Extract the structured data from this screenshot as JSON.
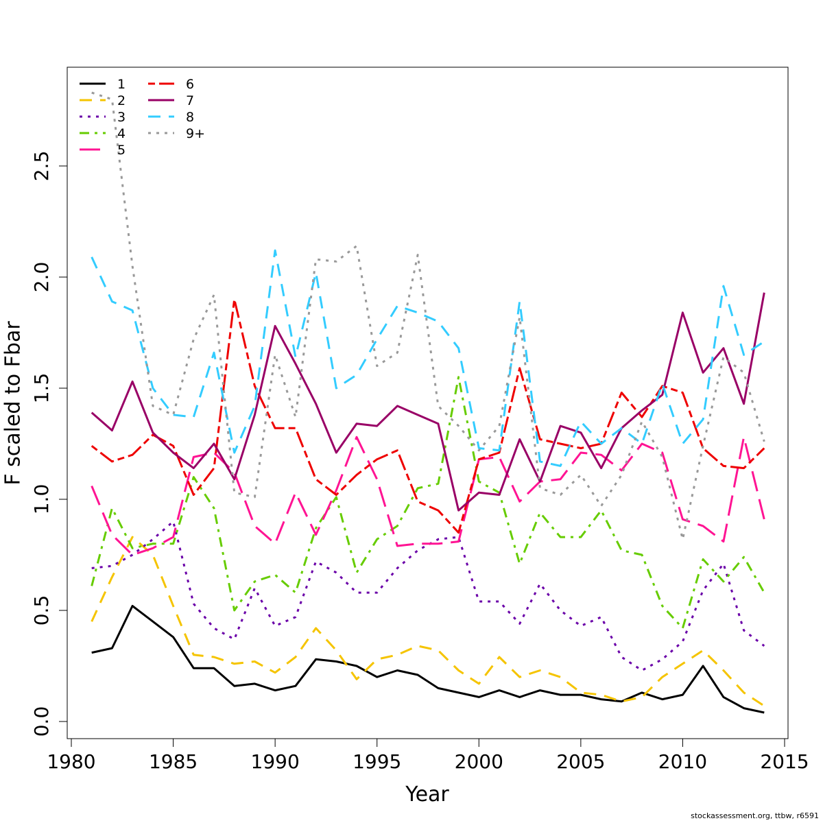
{
  "chart_data": {
    "type": "line",
    "title": "",
    "xlabel": "Year",
    "ylabel": "F scaled to Fbar",
    "xlim": [
      1980,
      2015
    ],
    "ylim": [
      0,
      2.85
    ],
    "x_ticks": [
      "1980",
      "1985",
      "1990",
      "1995",
      "2000",
      "2005",
      "2010",
      "2015"
    ],
    "y_ticks": [
      "0.0",
      "0.5",
      "1.0",
      "1.5",
      "2.0",
      "2.5"
    ],
    "grid": false,
    "legend_position": "top-left",
    "x": [
      1981,
      1982,
      1983,
      1984,
      1985,
      1986,
      1987,
      1988,
      1989,
      1990,
      1991,
      1992,
      1993,
      1994,
      1995,
      1996,
      1997,
      1998,
      1999,
      2000,
      2001,
      2002,
      2003,
      2004,
      2005,
      2006,
      2007,
      2008,
      2009,
      2010,
      2011,
      2012,
      2013,
      2014
    ],
    "series": [
      {
        "name": "1",
        "color": "#000000",
        "dash": "solid",
        "values": [
          0.31,
          0.33,
          0.52,
          0.45,
          0.38,
          0.24,
          0.24,
          0.16,
          0.17,
          0.14,
          0.16,
          0.28,
          0.27,
          0.25,
          0.2,
          0.23,
          0.21,
          0.15,
          0.13,
          0.11,
          0.14,
          0.11,
          0.14,
          0.12,
          0.12,
          0.1,
          0.09,
          0.13,
          0.1,
          0.12,
          0.25,
          0.11,
          0.06,
          0.04
        ]
      },
      {
        "name": "2",
        "color": "#f5c400",
        "dash": "dashed",
        "values": [
          0.45,
          0.65,
          0.83,
          0.75,
          0.52,
          0.3,
          0.29,
          0.26,
          0.27,
          0.22,
          0.29,
          0.42,
          0.32,
          0.19,
          0.28,
          0.3,
          0.34,
          0.32,
          0.23,
          0.17,
          0.29,
          0.2,
          0.23,
          0.2,
          0.13,
          0.12,
          0.09,
          0.11,
          0.2,
          0.26,
          0.32,
          0.23,
          0.13,
          0.07
        ]
      },
      {
        "name": "3",
        "color": "#6a00a8",
        "dash": "dotted",
        "values": [
          0.69,
          0.7,
          0.75,
          0.82,
          0.9,
          0.53,
          0.42,
          0.37,
          0.6,
          0.43,
          0.47,
          0.72,
          0.67,
          0.58,
          0.58,
          0.69,
          0.77,
          0.82,
          0.83,
          0.54,
          0.54,
          0.44,
          0.62,
          0.5,
          0.43,
          0.47,
          0.29,
          0.23,
          0.28,
          0.36,
          0.59,
          0.71,
          0.41,
          0.34
        ]
      },
      {
        "name": "4",
        "color": "#66cc00",
        "dash": "dashdot",
        "values": [
          0.61,
          0.96,
          0.78,
          0.8,
          0.8,
          1.1,
          0.96,
          0.5,
          0.63,
          0.66,
          0.58,
          0.87,
          1.01,
          0.67,
          0.82,
          0.88,
          1.05,
          1.07,
          1.55,
          1.08,
          1.03,
          0.71,
          0.94,
          0.83,
          0.83,
          0.95,
          0.77,
          0.75,
          0.52,
          0.42,
          0.73,
          0.63,
          0.74,
          0.58
        ]
      },
      {
        "name": "5",
        "color": "#ff1493",
        "dash": "longdash",
        "values": [
          1.06,
          0.84,
          0.75,
          0.78,
          0.83,
          1.19,
          1.21,
          1.12,
          0.88,
          0.8,
          1.03,
          0.84,
          1.04,
          1.28,
          1.09,
          0.79,
          0.8,
          0.8,
          0.81,
          1.18,
          1.19,
          0.99,
          1.08,
          1.09,
          1.21,
          1.2,
          1.13,
          1.25,
          1.21,
          0.91,
          0.88,
          0.81,
          1.28,
          0.91
        ]
      },
      {
        "name": "6",
        "color": "#ee0000",
        "dash": "twodash",
        "values": [
          1.24,
          1.17,
          1.2,
          1.29,
          1.24,
          1.02,
          1.14,
          1.9,
          1.51,
          1.32,
          1.32,
          1.09,
          1.02,
          1.11,
          1.18,
          1.22,
          0.99,
          0.95,
          0.85,
          1.18,
          1.21,
          1.59,
          1.27,
          1.25,
          1.23,
          1.25,
          1.48,
          1.37,
          1.51,
          1.48,
          1.23,
          1.15,
          1.14,
          1.23
        ]
      },
      {
        "name": "7",
        "color": "#990066",
        "dash": "solid",
        "values": [
          1.39,
          1.31,
          1.53,
          1.3,
          1.21,
          1.14,
          1.25,
          1.09,
          1.38,
          1.78,
          1.61,
          1.43,
          1.21,
          1.34,
          1.33,
          1.42,
          1.38,
          1.34,
          0.95,
          1.03,
          1.02,
          1.27,
          1.08,
          1.33,
          1.3,
          1.14,
          1.32,
          1.4,
          1.47,
          1.84,
          1.57,
          1.68,
          1.43,
          1.93
        ]
      },
      {
        "name": "8",
        "color": "#33ccff",
        "dash": "dashed",
        "values": [
          2.09,
          1.89,
          1.85,
          1.5,
          1.38,
          1.37,
          1.66,
          1.21,
          1.42,
          2.12,
          1.64,
          2.02,
          1.5,
          1.56,
          1.72,
          1.87,
          1.84,
          1.8,
          1.68,
          1.23,
          1.22,
          1.89,
          1.17,
          1.15,
          1.35,
          1.25,
          1.32,
          1.25,
          1.52,
          1.25,
          1.36,
          1.96,
          1.65,
          1.71
        ]
      },
      {
        "name": "9+",
        "color": "#999999",
        "dash": "dotted",
        "values": [
          2.83,
          2.8,
          2.05,
          1.42,
          1.38,
          1.72,
          1.92,
          1.03,
          1.01,
          1.65,
          1.37,
          2.08,
          2.07,
          2.14,
          1.6,
          1.66,
          2.1,
          1.42,
          1.33,
          1.22,
          1.33,
          1.82,
          1.05,
          1.02,
          1.11,
          0.97,
          1.11,
          1.35,
          1.19,
          0.82,
          1.24,
          1.64,
          1.57,
          1.26
        ]
      }
    ]
  },
  "credit": "stockassessment.org, ttbw, r6591"
}
